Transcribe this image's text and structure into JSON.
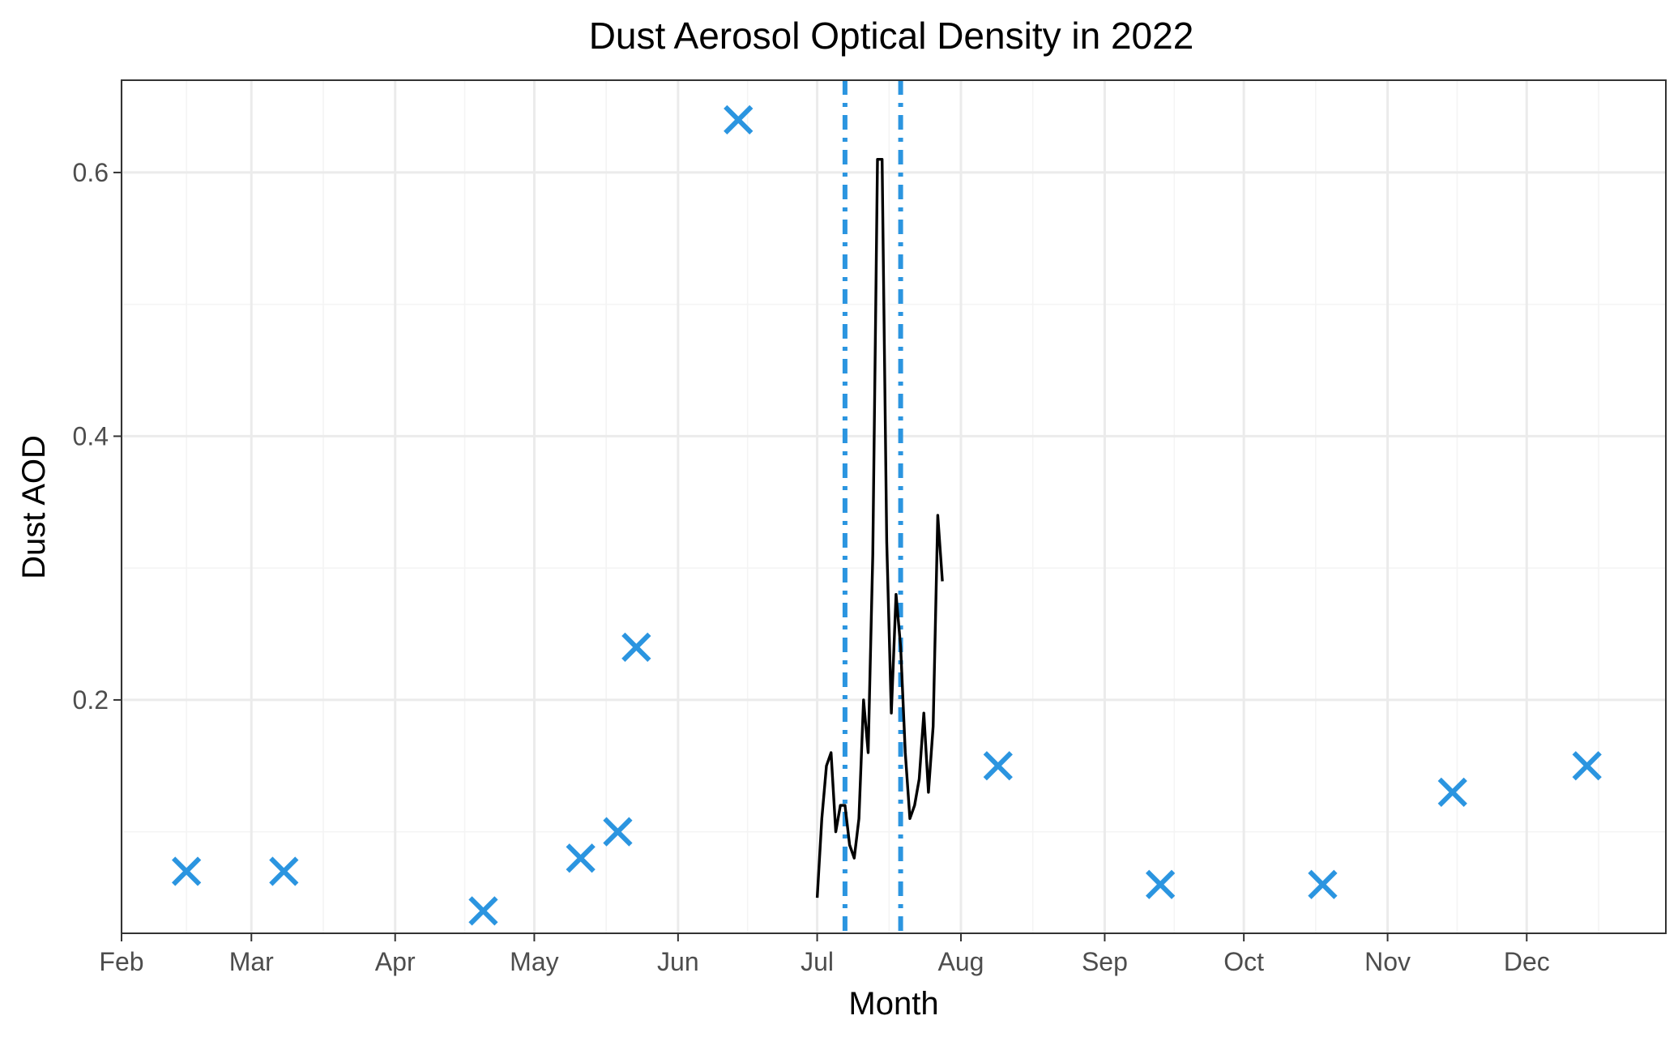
{
  "chart_data": {
    "type": "scatter",
    "title": "Dust Aerosol Optical Density in 2022",
    "xlabel": "Month",
    "ylabel": "Dust AOD",
    "x_axis": {
      "type": "date",
      "range": [
        "2022-02-01",
        "2022-12-31"
      ],
      "ticks": [
        {
          "date": "2022-02-01",
          "label": "Feb"
        },
        {
          "date": "2022-03-01",
          "label": "Mar"
        },
        {
          "date": "2022-04-01",
          "label": "Apr"
        },
        {
          "date": "2022-05-01",
          "label": "May"
        },
        {
          "date": "2022-06-01",
          "label": "Jun"
        },
        {
          "date": "2022-07-01",
          "label": "Jul"
        },
        {
          "date": "2022-08-01",
          "label": "Aug"
        },
        {
          "date": "2022-09-01",
          "label": "Sep"
        },
        {
          "date": "2022-10-01",
          "label": "Oct"
        },
        {
          "date": "2022-11-01",
          "label": "Nov"
        },
        {
          "date": "2022-12-01",
          "label": "Dec"
        }
      ]
    },
    "y_axis": {
      "range": [
        0.023,
        0.67
      ],
      "ticks": [
        {
          "value": 0.2,
          "label": "0.2"
        },
        {
          "value": 0.4,
          "label": "0.4"
        },
        {
          "value": 0.6,
          "label": "0.6"
        }
      ],
      "minor_ticks": [
        0.1,
        0.3,
        0.5
      ]
    },
    "grid": true,
    "legend": "none",
    "colors": {
      "marker": "#2b95e0",
      "line": "#000000",
      "vline": "#2b95e0"
    },
    "series": [
      {
        "type": "scatter",
        "marker": "x",
        "points": [
          {
            "x": "2022-02-15",
            "y": 0.07
          },
          {
            "x": "2022-03-08",
            "y": 0.07
          },
          {
            "x": "2022-04-20",
            "y": 0.04
          },
          {
            "x": "2022-05-11",
            "y": 0.08
          },
          {
            "x": "2022-05-19",
            "y": 0.1
          },
          {
            "x": "2022-05-23",
            "y": 0.24
          },
          {
            "x": "2022-06-14",
            "y": 0.64
          },
          {
            "x": "2022-08-09",
            "y": 0.15
          },
          {
            "x": "2022-09-13",
            "y": 0.06
          },
          {
            "x": "2022-10-18",
            "y": 0.06
          },
          {
            "x": "2022-11-15",
            "y": 0.13
          },
          {
            "x": "2022-12-14",
            "y": 0.15
          }
        ]
      },
      {
        "type": "line",
        "points": [
          {
            "x": "2022-07-01",
            "y": 0.05
          },
          {
            "x": "2022-07-02",
            "y": 0.11
          },
          {
            "x": "2022-07-03",
            "y": 0.15
          },
          {
            "x": "2022-07-04",
            "y": 0.16
          },
          {
            "x": "2022-07-05",
            "y": 0.1
          },
          {
            "x": "2022-07-06",
            "y": 0.12
          },
          {
            "x": "2022-07-07",
            "y": 0.12
          },
          {
            "x": "2022-07-08",
            "y": 0.09
          },
          {
            "x": "2022-07-09",
            "y": 0.08
          },
          {
            "x": "2022-07-10",
            "y": 0.11
          },
          {
            "x": "2022-07-11",
            "y": 0.2
          },
          {
            "x": "2022-07-12",
            "y": 0.16
          },
          {
            "x": "2022-07-13",
            "y": 0.31
          },
          {
            "x": "2022-07-14",
            "y": 0.61
          },
          {
            "x": "2022-07-15",
            "y": 0.61
          },
          {
            "x": "2022-07-16",
            "y": 0.32
          },
          {
            "x": "2022-07-17",
            "y": 0.19
          },
          {
            "x": "2022-07-18",
            "y": 0.28
          },
          {
            "x": "2022-07-19",
            "y": 0.24
          },
          {
            "x": "2022-07-20",
            "y": 0.16
          },
          {
            "x": "2022-07-21",
            "y": 0.11
          },
          {
            "x": "2022-07-22",
            "y": 0.12
          },
          {
            "x": "2022-07-23",
            "y": 0.14
          },
          {
            "x": "2022-07-24",
            "y": 0.19
          },
          {
            "x": "2022-07-25",
            "y": 0.13
          },
          {
            "x": "2022-07-26",
            "y": 0.18
          },
          {
            "x": "2022-07-27",
            "y": 0.34
          },
          {
            "x": "2022-07-28",
            "y": 0.29
          }
        ]
      }
    ],
    "vertical_lines": [
      {
        "x": "2022-07-07",
        "style": "dotdash"
      },
      {
        "x": "2022-07-19",
        "style": "dotdash"
      }
    ]
  }
}
